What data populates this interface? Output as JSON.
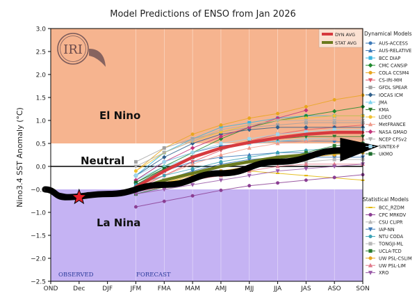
{
  "chart_data": {
    "type": "line",
    "title": "Model Predictions of ENSO from Jan 2026",
    "xlabel": "",
    "ylabel": "Nino3.4 SST Anomaly (°C)",
    "ylim": [
      -2.5,
      3.0
    ],
    "yticks": [
      -2.5,
      -2.0,
      -1.5,
      -1.0,
      -0.5,
      0.0,
      0.5,
      1.0,
      1.5,
      2.0,
      2.5,
      3.0
    ],
    "ytick_labels": [
      "−2.5",
      "−2.0",
      "−1.5",
      "−1.0",
      "−0.5",
      "0.0",
      "0.5",
      "1.0",
      "1.5",
      "2.0",
      "2.5",
      "3.0"
    ],
    "categories": [
      "OND",
      "Dec",
      "DJF",
      "JFM",
      "FMA",
      "MAM",
      "AMJ",
      "MJJ",
      "JJA",
      "JAS",
      "ASO",
      "SON"
    ],
    "regions": [
      {
        "name": "El Nino",
        "from": 0.5,
        "to": 3.0,
        "color": "#f6b48f"
      },
      {
        "name": "Neutral",
        "from": -0.5,
        "to": 0.5,
        "color": "#ffffff"
      },
      {
        "name": "La Nina",
        "from": -2.5,
        "to": -0.5,
        "color": "#c5b3f3"
      }
    ],
    "region_labels": {
      "el_nino": "El Nino",
      "neutral": "Neutral",
      "la_nina": "La Nina"
    },
    "observed": {
      "label": "OBSERVED",
      "values": [
        -0.55,
        -0.67
      ],
      "marker_color": "#e8202a"
    },
    "forecast_label": "FORECAST",
    "trend_arrow": {
      "x": [
        -0.2,
        0.5,
        2,
        4,
        6,
        8,
        10.3
      ],
      "y": [
        -0.5,
        -0.67,
        -0.6,
        -0.4,
        -0.15,
        0.1,
        0.35
      ],
      "color": "#000000"
    },
    "averages": {
      "legend": [
        {
          "name": "DYN AVG",
          "color": "#d63a3f"
        },
        {
          "name": "STAT AVG",
          "color": "#6b7a1e"
        }
      ],
      "series": [
        {
          "name": "DYN AVG",
          "color": "#d63a3f",
          "values": [
            null,
            null,
            null,
            -0.45,
            -0.1,
            0.2,
            0.4,
            0.52,
            0.62,
            0.7,
            0.74,
            0.74
          ]
        },
        {
          "name": "STAT AVG",
          "color": "#6b7a1e",
          "values": [
            null,
            null,
            null,
            -0.5,
            -0.3,
            -0.15,
            0.0,
            0.1,
            0.2,
            0.25,
            0.3,
            0.32
          ]
        }
      ]
    },
    "dynamical_title": "Dynamical Models",
    "dynamical": [
      {
        "name": "AUS-ACCESS",
        "color": "#3b78b7",
        "marker": "circle",
        "values": [
          null,
          null,
          null,
          -0.3,
          0.1,
          0.3,
          0.45,
          0.5,
          0.55,
          0.55,
          0.55,
          0.5
        ]
      },
      {
        "name": "AUS-RELATIVE",
        "color": "#3b78b7",
        "marker": "triangle",
        "values": [
          null,
          null,
          null,
          -0.4,
          -0.1,
          0.1,
          0.2,
          0.25,
          0.3,
          0.3,
          0.3,
          0.3
        ]
      },
      {
        "name": "BCC DIAP",
        "color": "#39b5e0",
        "marker": "square",
        "values": [
          null,
          null,
          null,
          -0.2,
          0.3,
          0.6,
          0.85,
          0.95,
          1.05,
          1.1,
          1.1,
          1.1
        ]
      },
      {
        "name": "CMC CANSIP",
        "color": "#1f8a2e",
        "marker": "diamond",
        "values": [
          null,
          null,
          null,
          -0.35,
          0.0,
          0.3,
          0.6,
          0.85,
          1.0,
          1.1,
          1.2,
          1.3
        ]
      },
      {
        "name": "COLA CCSM4",
        "color": "#e8a61f",
        "marker": "circle",
        "values": [
          null,
          null,
          null,
          -0.1,
          0.4,
          0.7,
          0.9,
          1.05,
          1.15,
          1.3,
          1.45,
          1.55
        ]
      },
      {
        "name": "CS-IRI-MM",
        "color": "#e05a6a",
        "marker": "triangledown",
        "values": [
          null,
          null,
          null,
          -0.5,
          -0.2,
          0.1,
          0.35,
          0.55,
          0.7,
          0.8,
          0.85,
          0.9
        ]
      },
      {
        "name": "GFDL SPEAR",
        "color": "#a3a3a3",
        "marker": "square",
        "values": [
          null,
          null,
          null,
          0.1,
          0.4,
          0.6,
          0.75,
          0.85,
          0.9,
          0.95,
          0.95,
          0.95
        ]
      },
      {
        "name": "IOCAS ICM",
        "color": "#2f5f8c",
        "marker": "diamond",
        "values": [
          null,
          null,
          null,
          -0.2,
          0.2,
          0.5,
          0.7,
          0.8,
          0.85,
          0.85,
          0.85,
          0.85
        ]
      },
      {
        "name": "JMA",
        "color": "#7fd3ee",
        "marker": "triangle",
        "values": [
          null,
          null,
          null,
          -0.3,
          0.0,
          0.2,
          0.4,
          0.5,
          0.55,
          0.6,
          0.6,
          0.6
        ]
      },
      {
        "name": "KMA",
        "color": "#2a7a2e",
        "marker": "triangledown",
        "values": [
          null,
          null,
          null,
          -0.4,
          -0.05,
          0.2,
          0.4,
          0.55,
          0.6,
          0.65,
          0.65,
          0.65
        ]
      },
      {
        "name": "LDEO",
        "color": "#f1c232",
        "marker": "circle",
        "values": [
          null,
          null,
          null,
          -0.1,
          0.3,
          0.55,
          0.75,
          0.9,
          1.0,
          1.05,
          1.1,
          1.1
        ]
      },
      {
        "name": "MetFRANCE",
        "color": "#ef9a8a",
        "marker": "triangle",
        "values": [
          null,
          null,
          null,
          -0.45,
          -0.2,
          0.05,
          0.25,
          0.4,
          0.5,
          0.55,
          0.6,
          0.6
        ]
      },
      {
        "name": "NASA GMAO",
        "color": "#c2357a",
        "marker": "diamond",
        "values": [
          null,
          null,
          null,
          -0.3,
          0.1,
          0.4,
          0.65,
          0.85,
          1.05,
          1.22,
          null,
          null
        ]
      },
      {
        "name": "NCEP CFSv2",
        "color": "#b0b0b0",
        "marker": "triangledown",
        "values": [
          null,
          null,
          null,
          0.0,
          0.3,
          0.55,
          0.8,
          0.9,
          1.0,
          1.0,
          1.0,
          1.0
        ]
      },
      {
        "name": "SINTEX-F",
        "color": "#9fd6ee",
        "marker": "square",
        "values": [
          null,
          null,
          null,
          -0.2,
          0.1,
          0.3,
          0.5,
          0.6,
          0.7,
          0.75,
          0.8,
          0.8
        ]
      },
      {
        "name": "UKMO",
        "color": "#1b6b2b",
        "marker": "square",
        "values": [
          null,
          null,
          null,
          -0.35,
          -0.05,
          0.2,
          0.4,
          null,
          null,
          null,
          null,
          null
        ]
      }
    ],
    "statistical_title": "Statistical Models",
    "statistical": [
      {
        "name": "BCC_RZDM",
        "color": "#e0b400",
        "marker": "dash",
        "values": [
          null,
          null,
          null,
          -0.45,
          -0.35,
          -0.25,
          -0.15,
          -0.1,
          -0.15,
          -0.2,
          -0.25,
          -0.3
        ]
      },
      {
        "name": "CPC MRKOV",
        "color": "#8a3d92",
        "marker": "circle",
        "values": [
          null,
          null,
          null,
          -0.88,
          -0.76,
          -0.64,
          -0.52,
          -0.42,
          -0.36,
          -0.3,
          -0.24,
          -0.18
        ]
      },
      {
        "name": "CSU CLIPR",
        "color": "#b8b8b8",
        "marker": "triangle",
        "values": [
          null,
          null,
          null,
          -0.6,
          -0.45,
          -0.3,
          -0.15,
          0.0,
          0.1,
          0.2,
          0.25,
          0.3
        ]
      },
      {
        "name": "IAP-NN",
        "color": "#3b78b7",
        "marker": "triangledown",
        "values": [
          null,
          null,
          null,
          -0.5,
          -0.3,
          -0.1,
          0.05,
          0.15,
          0.2,
          0.2,
          0.2,
          0.2
        ]
      },
      {
        "name": "NTU CODA",
        "color": "#3aa2b5",
        "marker": "circle",
        "values": [
          null,
          null,
          null,
          -0.4,
          -0.2,
          -0.05,
          0.1,
          0.2,
          0.3,
          0.35,
          0.4,
          0.4
        ]
      },
      {
        "name": "TONGJI-ML",
        "color": "#b8b8b8",
        "marker": "square",
        "values": [
          null,
          null,
          null,
          -0.55,
          -0.4,
          -0.25,
          -0.1,
          0.0,
          0.1,
          0.1,
          0.15,
          0.15
        ]
      },
      {
        "name": "UCLA-TCD",
        "color": "#2a7a2e",
        "marker": "square",
        "values": [
          null,
          null,
          null,
          -0.6,
          -0.45,
          -0.3,
          -0.15,
          0.0,
          0.15,
          0.3,
          0.45,
          0.5
        ]
      },
      {
        "name": "UW PSL-CSLIM",
        "color": "#e8a61f",
        "marker": "circle",
        "values": [
          null,
          null,
          null,
          -0.5,
          -0.35,
          -0.2,
          -0.1,
          0.0,
          0.1,
          0.2,
          0.25,
          0.3
        ]
      },
      {
        "name": "UW PSL-LIM",
        "color": "#e07a8a",
        "marker": "triangle",
        "values": [
          null,
          null,
          null,
          -0.55,
          -0.45,
          -0.3,
          -0.2,
          -0.1,
          0.0,
          0.05,
          0.05,
          0.05
        ]
      },
      {
        "name": "XRO",
        "color": "#9a5aa8",
        "marker": "triangledown",
        "values": [
          null,
          null,
          null,
          -0.6,
          -0.5,
          -0.4,
          -0.3,
          -0.2,
          -0.1,
          -0.05,
          0.0,
          0.05
        ]
      }
    ],
    "logo_text": "IRI"
  }
}
